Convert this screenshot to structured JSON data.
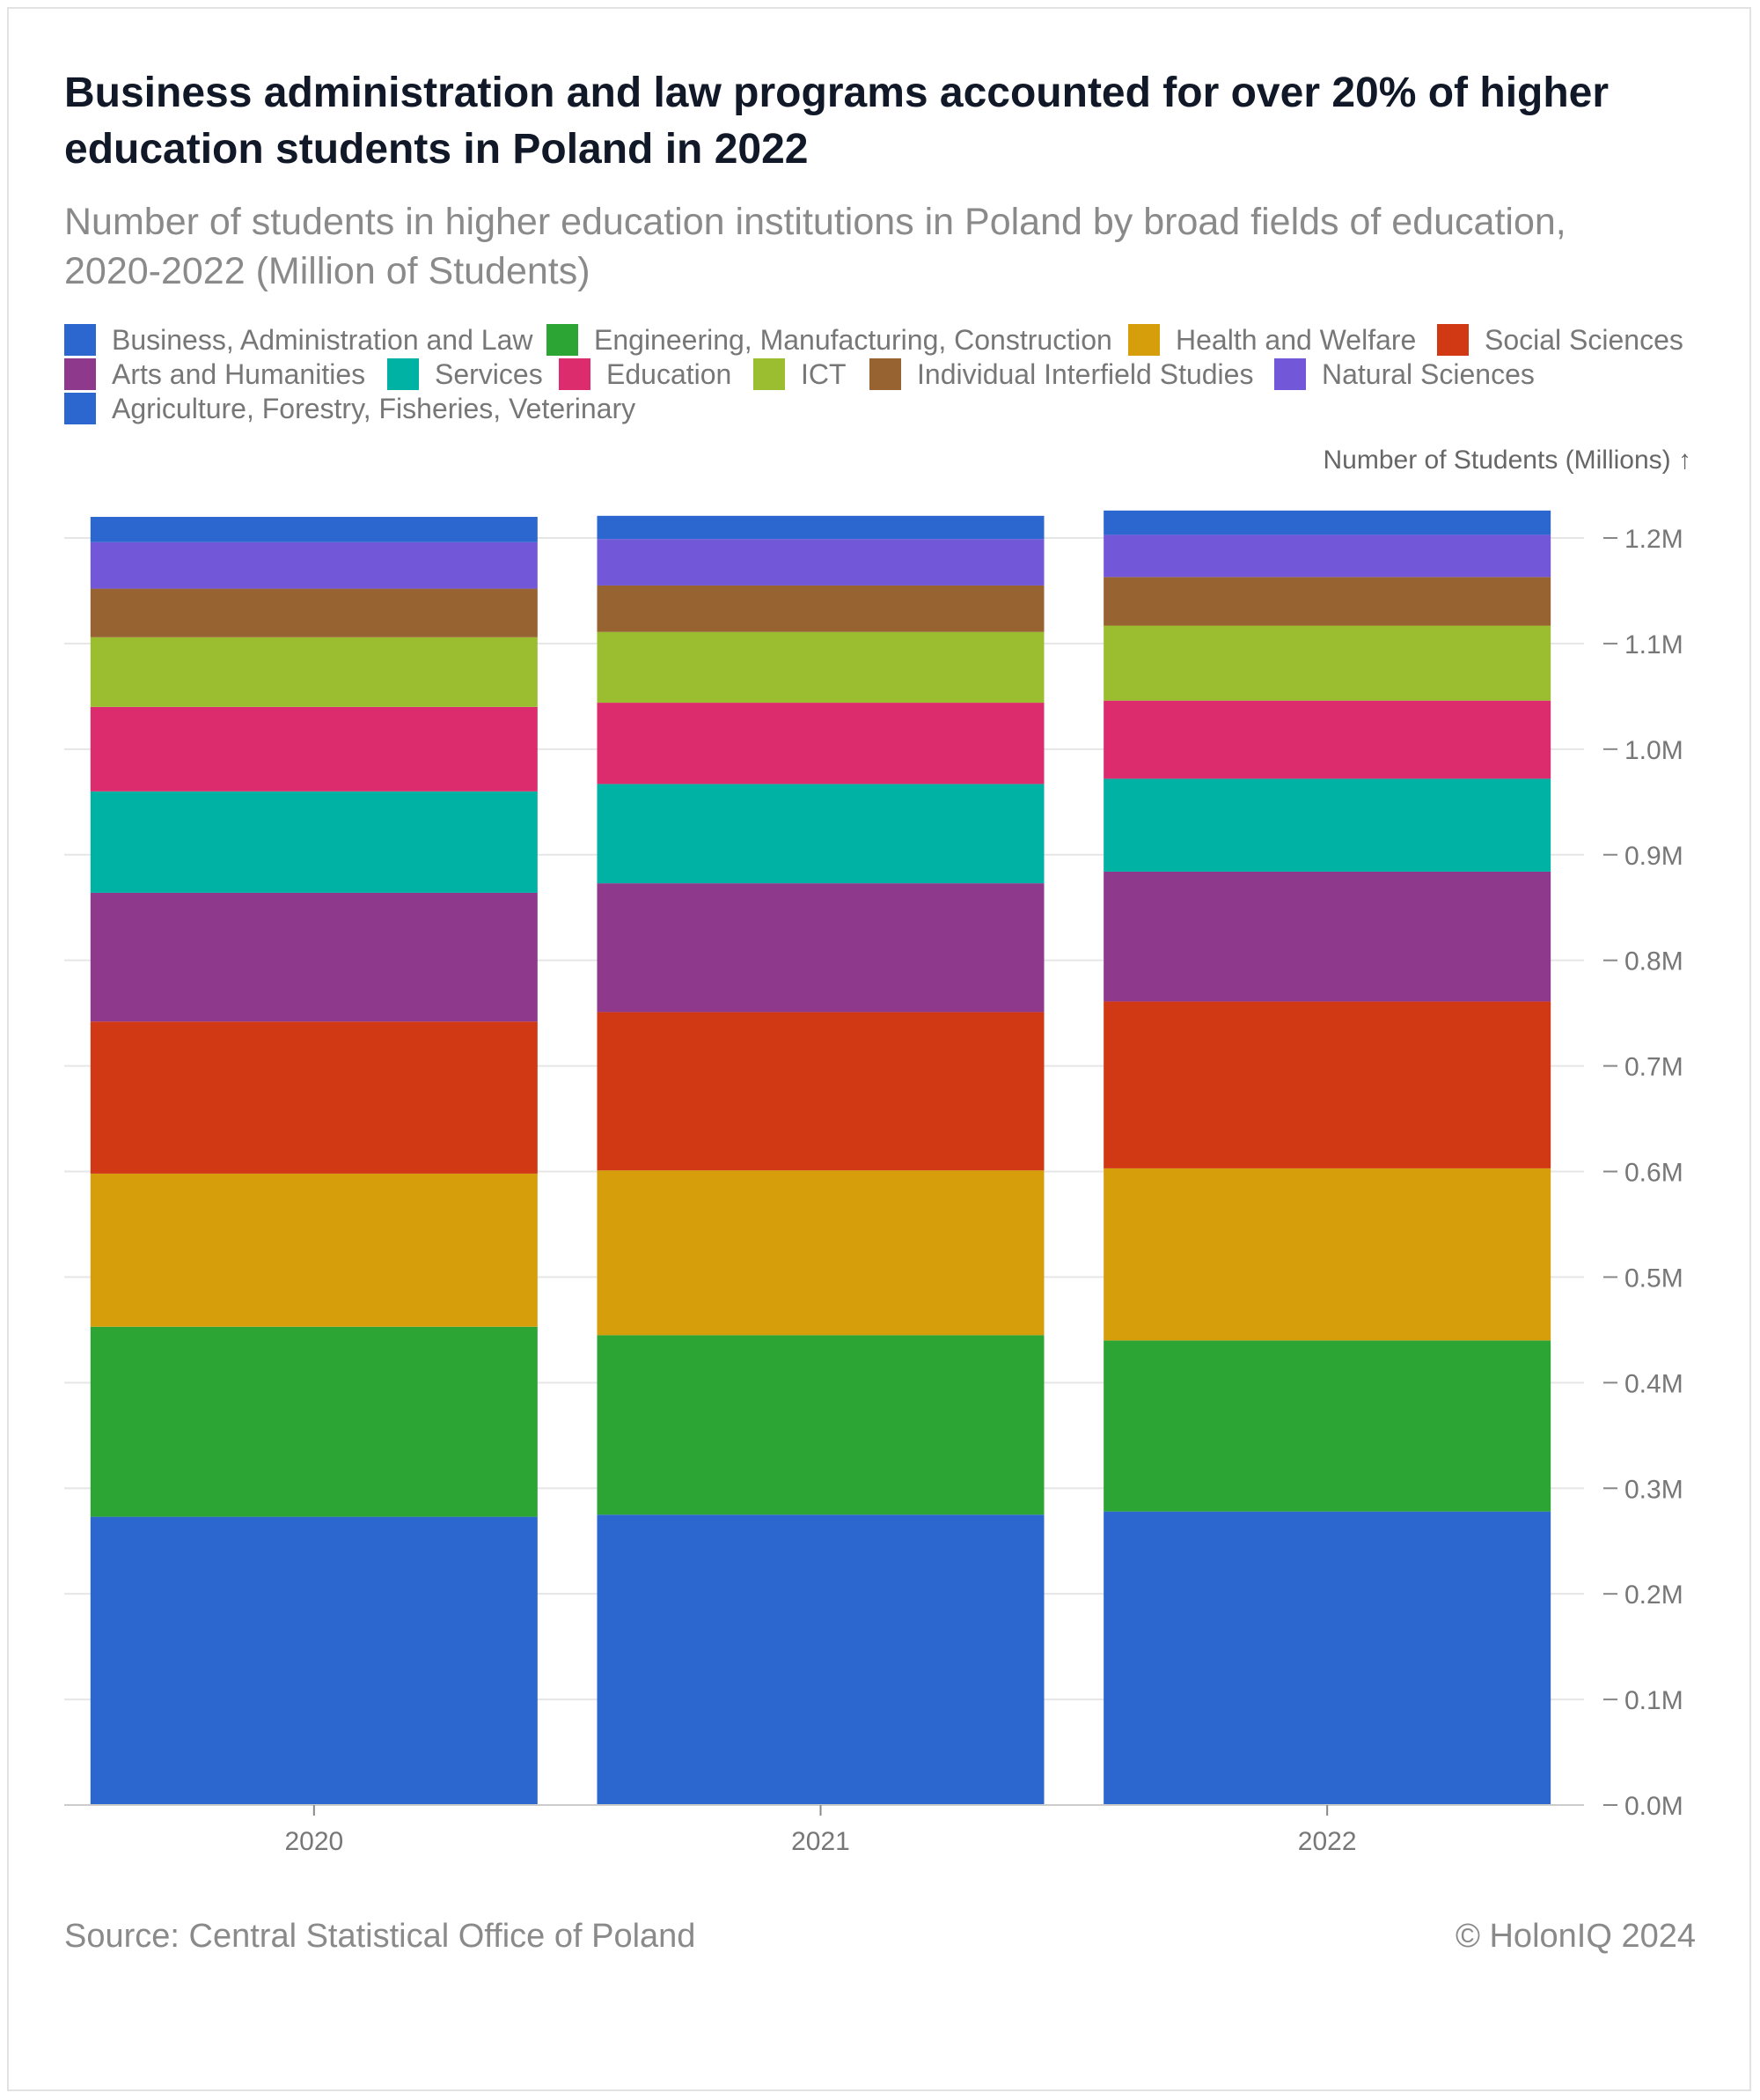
{
  "header": {
    "title": "Business administration and law programs accounted for over 20% of higher education students in Poland in 2022",
    "subtitle": "Number of students in higher education institutions in Poland by broad fields of education, 2020-2022 (Million of Students)"
  },
  "footer": {
    "source": "Source: Central Statistical Office of Poland",
    "credit": "© HolonIQ 2024"
  },
  "chart_data": {
    "type": "bar",
    "stacked": true,
    "categories": [
      "2020",
      "2021",
      "2022"
    ],
    "ylabel": "Number of Students (Millions) ↑",
    "ylim": [
      0,
      1.2
    ],
    "yticks": [
      {
        "value": 0.0,
        "label": "0.0M"
      },
      {
        "value": 0.1,
        "label": "0.1M"
      },
      {
        "value": 0.2,
        "label": "0.2M"
      },
      {
        "value": 0.3,
        "label": "0.3M"
      },
      {
        "value": 0.4,
        "label": "0.4M"
      },
      {
        "value": 0.5,
        "label": "0.5M"
      },
      {
        "value": 0.6,
        "label": "0.6M"
      },
      {
        "value": 0.7,
        "label": "0.7M"
      },
      {
        "value": 0.8,
        "label": "0.8M"
      },
      {
        "value": 0.9,
        "label": "0.9M"
      },
      {
        "value": 1.0,
        "label": "1.0M"
      },
      {
        "value": 1.1,
        "label": "1.1M"
      },
      {
        "value": 1.2,
        "label": "1.2M"
      }
    ],
    "grid": true,
    "legend_position": "top",
    "series": [
      {
        "name": "Business, Administration and Law",
        "color": "#2b67cf",
        "values": [
          0.273,
          0.275,
          0.278
        ]
      },
      {
        "name": "Engineering, Manufacturing, Construction",
        "color": "#2ca535",
        "values": [
          0.18,
          0.17,
          0.162
        ]
      },
      {
        "name": "Health and Welfare",
        "color": "#d79e0b",
        "values": [
          0.145,
          0.156,
          0.163
        ]
      },
      {
        "name": "Social Sciences",
        "color": "#d13914",
        "values": [
          0.144,
          0.15,
          0.158
        ]
      },
      {
        "name": "Arts and Humanities",
        "color": "#8e398c",
        "values": [
          0.122,
          0.122,
          0.123
        ]
      },
      {
        "name": "Services",
        "color": "#00b2a3",
        "values": [
          0.096,
          0.094,
          0.088
        ]
      },
      {
        "name": "Education",
        "color": "#dc2c6e",
        "values": [
          0.08,
          0.077,
          0.074
        ]
      },
      {
        "name": "ICT",
        "color": "#9bbe31",
        "values": [
          0.066,
          0.067,
          0.071
        ]
      },
      {
        "name": "Individual Interfield Studies",
        "color": "#976330",
        "values": [
          0.046,
          0.044,
          0.046
        ]
      },
      {
        "name": "Natural Sciences",
        "color": "#7258d8",
        "values": [
          0.044,
          0.044,
          0.04
        ]
      },
      {
        "name": "Agriculture, Forestry, Fisheries, Veterinary",
        "color": "#2b67cf",
        "values": [
          0.024,
          0.022,
          0.023
        ]
      }
    ]
  }
}
